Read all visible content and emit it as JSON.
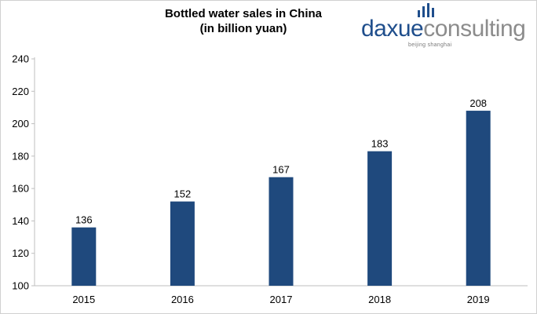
{
  "chart_data": {
    "type": "bar",
    "title": "Bottled water sales in China",
    "subtitle": "(in billion yuan)",
    "categories": [
      "2015",
      "2016",
      "2017",
      "2018",
      "2019"
    ],
    "values": [
      136,
      152,
      167,
      183,
      208
    ],
    "data_labels": [
      "136",
      "152",
      "167",
      "183",
      "208"
    ],
    "xlabel": "",
    "ylabel": "",
    "ylim": [
      100,
      240
    ],
    "yticks": [
      100,
      120,
      140,
      160,
      180,
      200,
      220,
      240
    ],
    "ytick_labels": [
      "100",
      "120",
      "140",
      "160",
      "180",
      "200",
      "220",
      "240"
    ],
    "grid": false,
    "legend": "none",
    "bar_color": "#1f497d"
  },
  "logo": {
    "word_part1": "daxue",
    "word_part2": "consulting",
    "tagline": "beijing shanghai",
    "color_primary": "#1f4e8c",
    "color_secondary": "#8c8c8c"
  }
}
